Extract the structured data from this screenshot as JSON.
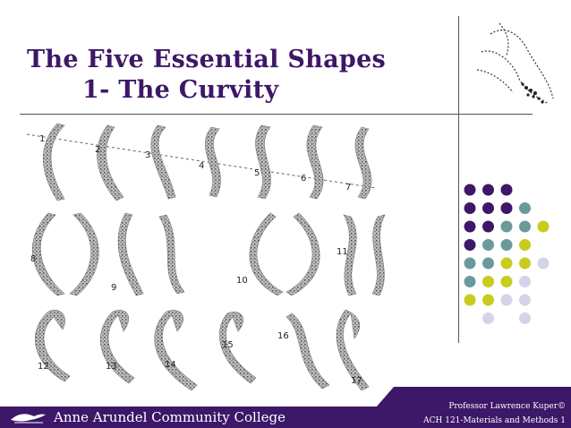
{
  "slide": {
    "title_line1": "The Five Essential Shapes",
    "title_line2": "1- The Curvity"
  },
  "figure": {
    "labels": [
      "1",
      "2",
      "3",
      "4",
      "5",
      "6",
      "7",
      "8",
      "9",
      "10",
      "11",
      "12",
      "13",
      "14",
      "15",
      "16",
      "17"
    ]
  },
  "footer": {
    "college_name": "Anne Arundel Community College",
    "professor": "Professor Lawrence Kuper©",
    "course": "ACH 121-Materials and Methods 1"
  },
  "colors": {
    "title": "#3d1768",
    "footer_bar": "#3d1768",
    "dot_purple": "#3d1768",
    "dot_teal": "#6b9a9a",
    "dot_yellow": "#c8cc1e",
    "dot_lavender": "#d6d3e8"
  }
}
